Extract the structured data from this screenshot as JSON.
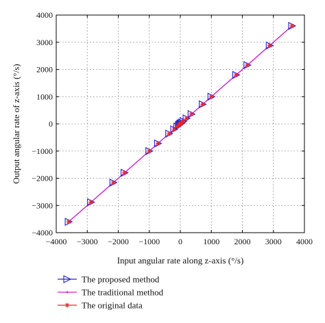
{
  "chart_data": {
    "type": "line",
    "xlabel": "Input angular rate along z-axis (°/s)",
    "ylabel": "Output angular rate of z-axis (°/s)",
    "xlim": [
      -4000,
      4000
    ],
    "ylim": [
      -4000,
      4000
    ],
    "xticks": [
      -4000,
      -3000,
      -2000,
      -1000,
      0,
      1000,
      2000,
      3000,
      4000
    ],
    "yticks": [
      -4000,
      -3000,
      -2000,
      -1000,
      0,
      1000,
      2000,
      3000,
      4000
    ],
    "x_tick_labels": [
      "−4000",
      "−3000",
      "−2000",
      "−1000",
      "0",
      "1000",
      "2000",
      "3000",
      "4000"
    ],
    "y_tick_labels": [
      "−4000",
      "−3000",
      "−2000",
      "−1000",
      "0",
      "1000",
      "2000",
      "3000",
      "4000"
    ],
    "grid": true,
    "legend_position": "below",
    "x": [
      -3600,
      -2880,
      -2160,
      -1800,
      -1000,
      -720,
      -360,
      -200,
      -100,
      -50,
      -20,
      0,
      20,
      50,
      100,
      200,
      360,
      720,
      1000,
      1800,
      2160,
      2880,
      3600
    ],
    "series": [
      {
        "name": "The proposed method",
        "marker": "triangle-right",
        "color": "#2222cc",
        "values": [
          -3600,
          -2880,
          -2160,
          -1800,
          -1000,
          -720,
          -360,
          -200,
          -100,
          -50,
          -20,
          0,
          20,
          50,
          100,
          200,
          360,
          720,
          1000,
          1800,
          2160,
          2880,
          3600
        ]
      },
      {
        "name": "The traditional method",
        "marker": "dot",
        "color": "#cc22cc",
        "values": [
          -3600,
          -2880,
          -2160,
          -1800,
          -1000,
          -720,
          -360,
          -200,
          -100,
          -50,
          -20,
          0,
          20,
          50,
          100,
          200,
          360,
          720,
          1000,
          1800,
          2160,
          2880,
          3600
        ]
      },
      {
        "name": "The original data",
        "marker": "asterisk",
        "color": "#ee2222",
        "values": [
          -3600,
          -2880,
          -2160,
          -1800,
          -1000,
          -720,
          -360,
          -200,
          -100,
          -50,
          -20,
          0,
          20,
          50,
          100,
          200,
          360,
          720,
          1000,
          1800,
          2160,
          2880,
          3600
        ]
      }
    ]
  }
}
